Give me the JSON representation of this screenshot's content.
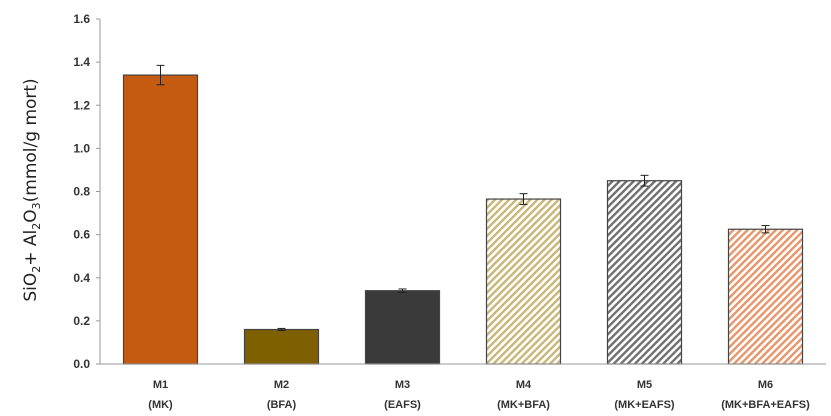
{
  "chart_data": {
    "type": "bar",
    "ylabel_parts": {
      "a": "SiO",
      "a_sub": "2",
      "b": "+ Al",
      "b_sub": "2",
      "c": "O",
      "c_sub": "3",
      "d": "(mmol/g mort)"
    },
    "ylim": [
      0,
      1.6
    ],
    "yticks": [
      "0.0",
      "0.2",
      "0.4",
      "0.6",
      "0.8",
      "1.0",
      "1.2",
      "1.4",
      "1.6"
    ],
    "grid": false,
    "categories": [
      {
        "line1": "M1",
        "line2": "(MK)"
      },
      {
        "line1": "M2",
        "line2": "(BFA)"
      },
      {
        "line1": "M3",
        "line2": "(EAFS)"
      },
      {
        "line1": "M4",
        "line2": "(MK+BFA)"
      },
      {
        "line1": "M5",
        "line2": "(MK+EAFS)"
      },
      {
        "line1": "M6",
        "line2": "(MK+BFA+EAFS)"
      }
    ],
    "values": [
      1.34,
      0.16,
      0.34,
      0.765,
      0.85,
      0.625
    ],
    "errors": [
      0.045,
      0.005,
      0.008,
      0.025,
      0.025,
      0.017
    ],
    "bar_styles": [
      {
        "fill": "#c55a11",
        "pattern": "solid"
      },
      {
        "fill": "#7f6000",
        "pattern": "solid"
      },
      {
        "fill": "#3a3a3a",
        "pattern": "solid"
      },
      {
        "fill": "#c9b777",
        "pattern": "hatch"
      },
      {
        "fill": "#707070",
        "pattern": "hatch"
      },
      {
        "fill": "#e8956a",
        "pattern": "hatch"
      }
    ]
  }
}
